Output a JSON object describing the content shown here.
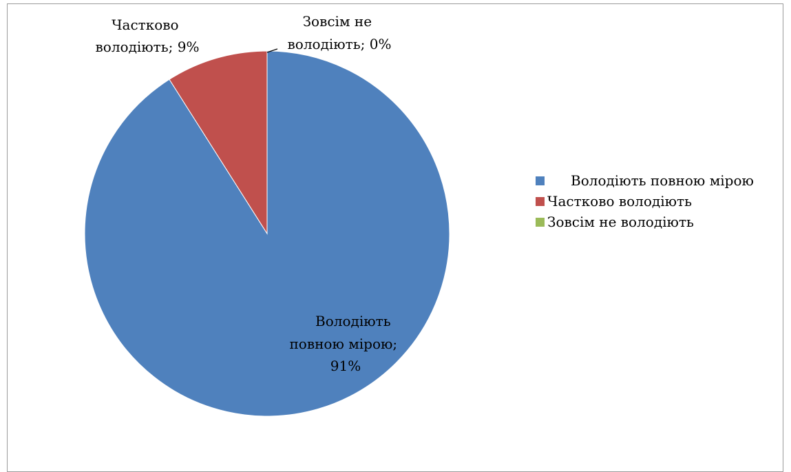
{
  "chart_data": {
    "type": "pie",
    "categories": [
      "Володіють повною мірою",
      "Частково володіють",
      "Зовсім не володіють"
    ],
    "values": [
      91,
      9,
      0
    ],
    "colors": [
      "#4F81BD",
      "#C0504D",
      "#9BBB59"
    ],
    "start_angle_deg": 0,
    "direction": "clockwise",
    "legend_position": "right",
    "data_labels": [
      [
        "Володіють",
        "повною мірою;",
        "91%"
      ],
      [
        "Частково",
        "володіють; 9%"
      ],
      [
        "Зовсім не",
        "володіють; 0%"
      ]
    ],
    "legend": [
      {
        "label": "Володіють повною мірою",
        "color": "#4F81BD"
      },
      {
        "label": "Частково володіють",
        "color": "#C0504D"
      },
      {
        "label": "Зовсім не володіють",
        "color": "#9BBB59"
      }
    ]
  }
}
